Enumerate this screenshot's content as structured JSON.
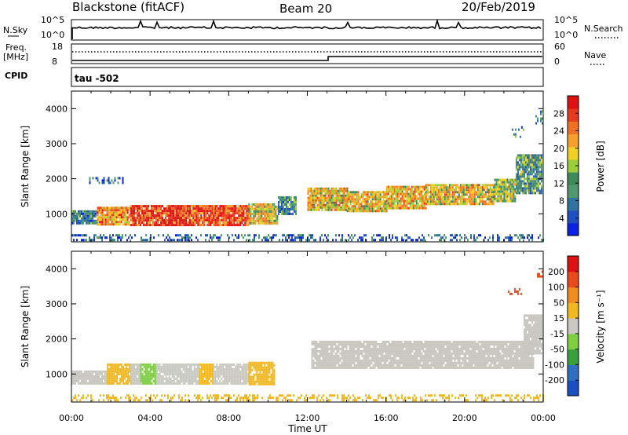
{
  "header": {
    "station": "Blackstone (fitACF)",
    "beam": "Beam 20",
    "date": "20/Feb/2019"
  },
  "top_panels": {
    "nsky_label": "N.Sky",
    "nsky_ticks": [
      "10^5",
      "10^0"
    ],
    "nsearch_label": "N.Search",
    "nsearch_ticks": [
      "10^5",
      "10^0"
    ],
    "freq_label": "Freq.",
    "freq_unit": "[MHz]",
    "freq_ticks": [
      "18",
      "8"
    ],
    "nave_label": "Nave",
    "nave_ticks": [
      "60",
      "0"
    ],
    "cpid_label": "CPID",
    "cpid_text": "tau -502"
  },
  "chart_data": [
    {
      "type": "heatmap",
      "name": "power",
      "ylabel": "Slant Range [km]",
      "ylim": [
        200,
        4500
      ],
      "yticks": [
        1000,
        2000,
        3000,
        4000
      ],
      "xlim": [
        0,
        24
      ],
      "colorbar": {
        "label": "Power [dB]",
        "ticks": [
          "4",
          "8",
          "12",
          "16",
          "20",
          "24",
          "28"
        ],
        "colors": [
          "#0b21e6",
          "#1f4fc0",
          "#2f74a0",
          "#4f9870",
          "#3f8a5a",
          "#9bcc39",
          "#f0d020",
          "#f5a02a",
          "#f07024",
          "#e83a1c",
          "#e01010"
        ]
      },
      "bands": [
        {
          "t0": 0.0,
          "t1": 1.3,
          "r0": 750,
          "r1": 1100,
          "level": 0.28
        },
        {
          "t0": 1.3,
          "t1": 3.0,
          "r0": 700,
          "r1": 1200,
          "level": 0.72
        },
        {
          "t0": 3.0,
          "t1": 6.0,
          "r0": 700,
          "r1": 1250,
          "level": 0.9
        },
        {
          "t0": 6.0,
          "t1": 9.0,
          "r0": 650,
          "r1": 1250,
          "level": 0.85
        },
        {
          "t0": 9.0,
          "t1": 10.5,
          "r0": 700,
          "r1": 1300,
          "level": 0.55
        },
        {
          "t0": 10.5,
          "t1": 11.4,
          "r0": 1000,
          "r1": 1500,
          "level": 0.3
        },
        {
          "t0": 12.0,
          "t1": 14.0,
          "r0": 1100,
          "r1": 1750,
          "level": 0.62
        },
        {
          "t0": 14.0,
          "t1": 16.0,
          "r0": 1050,
          "r1": 1650,
          "level": 0.6
        },
        {
          "t0": 16.0,
          "t1": 18.0,
          "r0": 1150,
          "r1": 1800,
          "level": 0.65
        },
        {
          "t0": 18.0,
          "t1": 21.5,
          "r0": 1250,
          "r1": 1850,
          "level": 0.62
        },
        {
          "t0": 21.5,
          "t1": 22.6,
          "r0": 1350,
          "r1": 2000,
          "level": 0.48
        },
        {
          "t0": 22.6,
          "t1": 23.9,
          "r0": 1600,
          "r1": 2700,
          "level": 0.35
        }
      ],
      "patches": [
        {
          "t0": 22.4,
          "t1": 23.0,
          "r0": 3200,
          "r1": 3500,
          "level": 0.3
        },
        {
          "t0": 23.6,
          "t1": 23.95,
          "r0": 3600,
          "r1": 3950,
          "level": 0.3
        },
        {
          "t0": 0.9,
          "t1": 2.6,
          "r0": 1850,
          "r1": 2050,
          "level": 0.15
        },
        {
          "t0": 0.0,
          "t1": 24.0,
          "r0": 250,
          "r1": 420,
          "level": 0.2
        }
      ]
    },
    {
      "type": "heatmap",
      "name": "velocity",
      "ylabel": "Slant Range [km]",
      "xlabel": "Time UT",
      "ylim": [
        200,
        4500
      ],
      "yticks": [
        1000,
        2000,
        3000,
        4000
      ],
      "xlim": [
        0,
        24
      ],
      "xticks": [
        "00:00",
        "04:00",
        "08:00",
        "12:00",
        "16:00",
        "20:00",
        "00:00"
      ],
      "colorbar": {
        "label": "Velocity [m s⁻¹]",
        "ticks": [
          "200",
          "100",
          "50",
          "15",
          "-15",
          "-50",
          "-100",
          "-200"
        ],
        "colors": [
          "#1a4fc2",
          "#2f6fbf",
          "#38a03a",
          "#7fd040",
          "#c8c8c0",
          "#f2b820",
          "#f28c20",
          "#ea4a1c",
          "#e01010"
        ]
      },
      "bands": [
        {
          "t0": 0.0,
          "t1": 1.8,
          "r0": 750,
          "r1": 1100,
          "color": "#c8c8c0"
        },
        {
          "t0": 1.8,
          "t1": 3.0,
          "r0": 700,
          "r1": 1300,
          "color": "#f2b820"
        },
        {
          "t0": 3.0,
          "t1": 3.5,
          "r0": 700,
          "r1": 1300,
          "color": "#c8c8c0"
        },
        {
          "t0": 3.5,
          "t1": 4.3,
          "r0": 750,
          "r1": 1300,
          "color": "#7fd040"
        },
        {
          "t0": 4.3,
          "t1": 6.5,
          "r0": 700,
          "r1": 1300,
          "color": "#c8c8c0"
        },
        {
          "t0": 6.5,
          "t1": 7.2,
          "r0": 700,
          "r1": 1300,
          "color": "#f2b820"
        },
        {
          "t0": 7.2,
          "t1": 9.0,
          "r0": 700,
          "r1": 1300,
          "color": "#c8c8c0"
        },
        {
          "t0": 9.0,
          "t1": 10.3,
          "r0": 700,
          "r1": 1350,
          "color": "#f2b820"
        },
        {
          "t0": 12.2,
          "t1": 23.5,
          "r0": 1150,
          "r1": 1950,
          "color": "#c8c8c0"
        },
        {
          "t0": 23.0,
          "t1": 23.95,
          "r0": 1600,
          "r1": 2700,
          "color": "#c8c8c0"
        }
      ],
      "patches": [
        {
          "t0": 22.2,
          "t1": 22.9,
          "r0": 3250,
          "r1": 3450,
          "color": "#ea4a1c"
        },
        {
          "t0": 23.6,
          "t1": 23.95,
          "r0": 3750,
          "r1": 3950,
          "color": "#ea4a1c"
        },
        {
          "t0": 0.0,
          "t1": 24.0,
          "r0": 250,
          "r1": 420,
          "color": "#f2b820"
        }
      ]
    }
  ]
}
